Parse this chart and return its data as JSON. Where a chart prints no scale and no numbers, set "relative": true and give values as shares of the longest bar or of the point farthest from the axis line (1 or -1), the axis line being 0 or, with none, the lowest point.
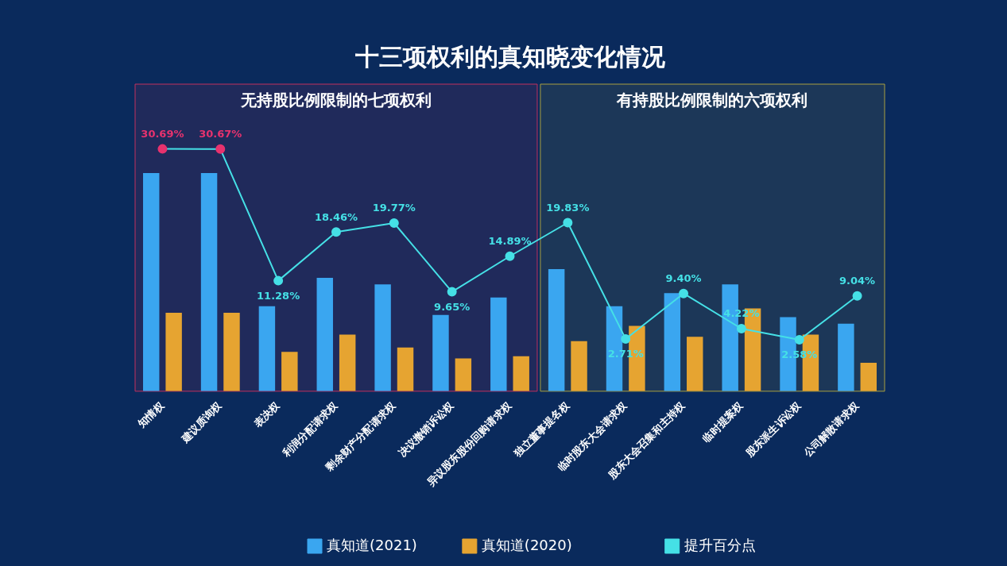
{
  "chart_data": [
    {
      "type": "bar",
      "title": "十三项权利的真知晓变化情况",
      "categories": [
        "知情权",
        "建议质询权",
        "表决权",
        "利润分配请求权",
        "剩余财产分配请求权",
        "决议撤销诉讼权",
        "异议股东股份回购请求权",
        "独立董事提名权",
        "临时股东大会请求权",
        "股东大会召集和主持权",
        "临时提案权",
        "股东派生诉讼权",
        "公司解散请求权"
      ],
      "relative": true,
      "series": [
        {
          "name": "真知道(2021)",
          "color": "#3aa6f0",
          "values": [
            1.0,
            1.0,
            0.39,
            0.52,
            0.49,
            0.35,
            0.43,
            0.56,
            0.39,
            0.45,
            0.49,
            0.34,
            0.31
          ]
        },
        {
          "name": "真知道(2020)",
          "color": "#e6a431",
          "values": [
            0.36,
            0.36,
            0.18,
            0.26,
            0.2,
            0.15,
            0.16,
            0.23,
            0.3,
            0.25,
            0.38,
            0.26,
            0.13
          ]
        }
      ],
      "bands": [
        {
          "axis": "x",
          "from": "知情权",
          "to": "异议股东股份回购请求权",
          "label": "无持股比例限制的七项权利",
          "color": "#c2305e"
        },
        {
          "axis": "x",
          "from": "独立董事提名权",
          "to": "公司解散请求权",
          "label": "有持股比例限制的六项权利",
          "color": "#a8a040"
        }
      ],
      "legend": "bottom"
    },
    {
      "type": "line",
      "categories": [
        null,
        null,
        null,
        null,
        null,
        null,
        null,
        null,
        null,
        null,
        null,
        null,
        null
      ],
      "series": [
        {
          "name": "提升百分点",
          "color": "#45e0e6",
          "colors": [
            "#e8326e",
            "#e8326e",
            "#45e0e6",
            "#45e0e6",
            "#45e0e6",
            "#45e0e6",
            "#45e0e6",
            "#45e0e6",
            "#45e0e6",
            "#45e0e6",
            "#45e0e6",
            "#45e0e6",
            "#45e0e6"
          ],
          "values": [
            30.69,
            30.67,
            11.28,
            18.46,
            19.77,
            9.65,
            14.89,
            19.83,
            2.71,
            9.4,
            4.22,
            2.58,
            9.04
          ],
          "value_labels": [
            "30.69%",
            "30.67%",
            "11.28%",
            "18.46%",
            "19.77%",
            "9.65%",
            "14.89%",
            "19.83%",
            "2.71%",
            "9.40%",
            "4.22%",
            "2.58%",
            "9.04%"
          ]
        }
      ],
      "marker": "circle",
      "legend": "bottom"
    }
  ]
}
